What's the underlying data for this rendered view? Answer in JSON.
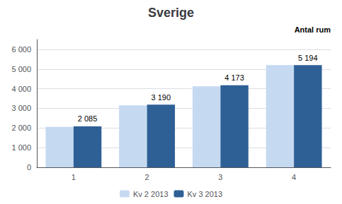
{
  "chart_data": {
    "type": "bar",
    "title": "Sverige",
    "annotation": "Antal rum",
    "categories": [
      "1",
      "2",
      "3",
      "4"
    ],
    "series": [
      {
        "name": "Kv 2 2013",
        "color": "#c5d9f1",
        "values": [
          2060,
          3150,
          4120,
          5200
        ]
      },
      {
        "name": "Kv 3 2013",
        "color": "#2e6096",
        "values": [
          2085,
          3190,
          4173,
          5194
        ],
        "data_labels": true,
        "value_labels": [
          "2 085",
          "3 190",
          "4 173",
          "5 194"
        ]
      }
    ],
    "ylim": [
      0,
      6500
    ],
    "yticks": [
      0,
      {
        "value": 1000,
        "label": "1 000"
      },
      {
        "value": 2000,
        "label": "2 000"
      },
      {
        "value": 3000,
        "label": "3 000"
      },
      {
        "value": 4000,
        "label": "4 000"
      },
      {
        "value": 5000,
        "label": "5 000"
      },
      {
        "value": 6000,
        "label": "6 000"
      }
    ],
    "grid": true,
    "legend": "bottom"
  }
}
